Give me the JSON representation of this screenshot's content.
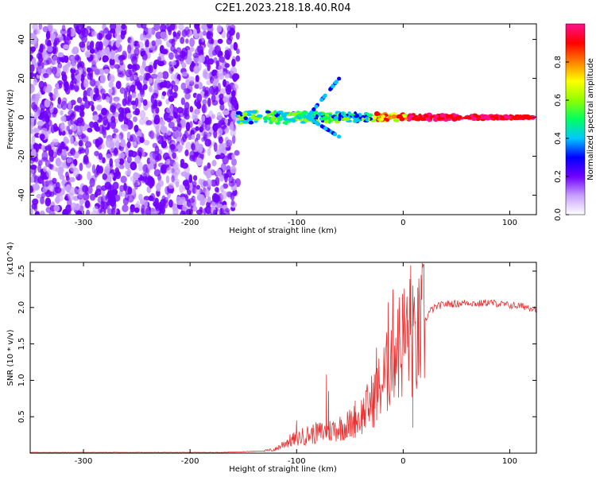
{
  "title": "C2E1.2023.218.18.40.R04",
  "chart_data": [
    {
      "type": "heatmap",
      "xlabel": "Height of straight line (km)",
      "ylabel": "Frequency (Hz)",
      "xlim": [
        -350,
        125
      ],
      "ylim": [
        -50,
        48
      ],
      "x_ticks": [
        -300,
        -200,
        -100,
        0,
        100
      ],
      "y_ticks": [
        -40,
        -20,
        0,
        20,
        40
      ],
      "grid": false,
      "colorbar": {
        "label": "Normalized spectral amplitude",
        "range": [
          0,
          1
        ],
        "ticks": [
          0.0,
          0.2,
          0.4,
          0.6,
          0.8
        ],
        "colors": [
          "#ffffff",
          "#c8a0ff",
          "#7000ff",
          "#0000ff",
          "#00c8ff",
          "#00ff60",
          "#90ff00",
          "#ffff00",
          "#ff8000",
          "#ff0000",
          "#ff1090"
        ]
      },
      "features": {
        "noise_region_x": [
          -350,
          -155
        ],
        "signal_band_x": [
          -155,
          125
        ],
        "signal_center_frequency": 0,
        "signal_tail_freq_extent": [
          -10,
          20
        ]
      }
    },
    {
      "type": "line",
      "xlabel": "Height of straight line (km)",
      "ylabel": "SNR (10 * v/v)",
      "y_multiplier": "(x10^4)",
      "xlim": [
        -350,
        125
      ],
      "ylim": [
        0,
        2.62
      ],
      "x_ticks": [
        -300,
        -200,
        -100,
        0,
        100
      ],
      "y_ticks": [
        0.5,
        1.0,
        1.5,
        2.0,
        2.5
      ],
      "color": "#e83030",
      "grid": false,
      "x": [
        -350,
        -300,
        -250,
        -200,
        -170,
        -150,
        -130,
        -120,
        -115,
        -110,
        -100,
        -90,
        -80,
        -70,
        -65,
        -60,
        -50,
        -40,
        -30,
        -20,
        -15,
        -12,
        -10,
        -8,
        -5,
        -2,
        0,
        5,
        8,
        10,
        15,
        20,
        25,
        30,
        35,
        40,
        50,
        60,
        70,
        80,
        90,
        100,
        110,
        120,
        125
      ],
      "y": [
        0.01,
        0.01,
        0.01,
        0.01,
        0.01,
        0.02,
        0.03,
        0.05,
        0.1,
        0.15,
        0.2,
        0.25,
        0.28,
        0.3,
        0.33,
        0.35,
        0.4,
        0.5,
        0.7,
        0.95,
        1.1,
        1.3,
        1.45,
        1.55,
        1.45,
        1.5,
        1.55,
        1.65,
        1.55,
        1.4,
        1.6,
        1.8,
        1.95,
        2.0,
        2.03,
        2.05,
        2.05,
        2.07,
        2.05,
        2.07,
        2.05,
        2.03,
        2.02,
        2.0,
        1.98
      ],
      "spikes": [
        {
          "x": -100,
          "y": 0.45
        },
        {
          "x": -72,
          "y": 1.08
        },
        {
          "x": -70,
          "y": 0.85
        },
        {
          "x": -45,
          "y": 0.72
        },
        {
          "x": -25,
          "y": 1.45
        },
        {
          "x": -14,
          "y": 2.07
        },
        {
          "x": -10,
          "y": 1.82
        },
        {
          "x": -5,
          "y": 1.98
        },
        {
          "x": 7,
          "y": 2.58
        },
        {
          "x": 9,
          "y": 2.3
        }
      ],
      "dips": [
        {
          "x": 9,
          "y": 0.35
        }
      ]
    }
  ]
}
